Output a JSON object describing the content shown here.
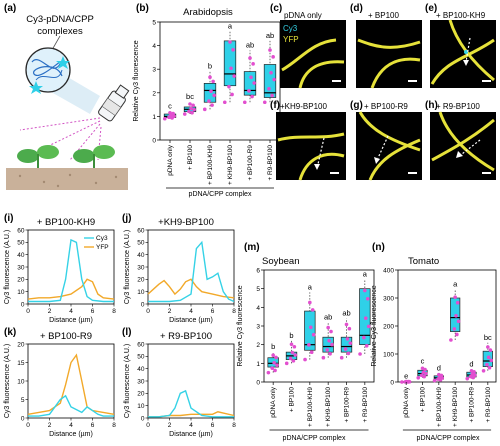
{
  "panel_labels": [
    "(a)",
    "(b)",
    "(c)",
    "(d)",
    "(e)",
    "(f)",
    "(g)",
    "(h)",
    "(i)",
    "(j)",
    "(k)",
    "(l)",
    "(m)",
    "(n)"
  ],
  "schematic": {
    "title_line1": "Cy3-pDNA/CPP",
    "title_line2": "complexes"
  },
  "micrographs": {
    "legend_cy3": "Cy3",
    "legend_yfp": "YFP",
    "titles": [
      "pDNA only",
      "+ BP100",
      "+ BP100-KH9",
      "+KH9-BP100",
      "+ BP100-R9",
      "+ R9-BP100"
    ]
  },
  "colors": {
    "box": "#2FD0E8",
    "point": "#E24FCF",
    "cy3": "#35D2E6",
    "yfp": "#F2A92A",
    "micro_bg": "#000000",
    "micro_yellow": "#E6E23A"
  },
  "bottom_label": "pDNA/CPP complex",
  "chart_data": [
    {
      "type": "box",
      "id": "b",
      "title": "Arabidopsis",
      "ylabel": "Relative Cy3 fluorescence",
      "ylim": [
        0,
        5
      ],
      "yticks": [
        0,
        1,
        2,
        3,
        4,
        5
      ],
      "categories": [
        "pDNA only",
        "+ BP100",
        "+ BP100-KH9",
        "+ KH9-BP100",
        "+ BP100-R9",
        "+ R9-BP100"
      ],
      "boxes": [
        [
          0.9,
          0.95,
          1.0,
          1.1,
          1.2
        ],
        [
          1.1,
          1.2,
          1.3,
          1.4,
          1.6
        ],
        [
          1.3,
          1.6,
          2.1,
          2.4,
          2.9
        ],
        [
          1.6,
          2.3,
          2.8,
          4.2,
          4.6
        ],
        [
          1.6,
          1.9,
          2.1,
          2.9,
          3.8
        ],
        [
          1.6,
          1.8,
          2.0,
          3.2,
          4.2
        ]
      ],
      "letters": [
        "c",
        "bc",
        "b",
        "a",
        "ab",
        "ab"
      ]
    },
    {
      "type": "box",
      "id": "m",
      "title": "Soybean",
      "ylabel": "Relative Cy3 fluorescence",
      "ylim": [
        0,
        6
      ],
      "yticks": [
        0,
        1,
        2,
        3,
        4,
        5,
        6
      ],
      "categories": [
        "pDNA only",
        "+ BP100",
        "+ BP100-KH9",
        "+ KH9-BP100",
        "+ BP100-R9",
        "+ R9-BP100"
      ],
      "boxes": [
        [
          0.5,
          0.8,
          1.0,
          1.3,
          1.6
        ],
        [
          1.0,
          1.2,
          1.4,
          1.6,
          2.2
        ],
        [
          1.2,
          1.7,
          2.0,
          3.8,
          4.8
        ],
        [
          1.3,
          1.6,
          1.9,
          2.4,
          3.2
        ],
        [
          1.3,
          1.6,
          1.9,
          2.4,
          3.4
        ],
        [
          1.5,
          2.0,
          2.5,
          5.0,
          5.5
        ]
      ],
      "letters": [
        "b",
        "b",
        "a",
        "ab",
        "ab",
        "a"
      ]
    },
    {
      "type": "box",
      "id": "n",
      "title": "Tomato",
      "ylabel": "Relative Cy3 fluorescence",
      "ylim": [
        0,
        400
      ],
      "yticks": [
        0,
        100,
        200,
        300,
        400
      ],
      "categories": [
        "pDNA only",
        "+ BP100",
        "+ BP100-KH9",
        "+ KH9-BP100",
        "+ BP100-R9",
        "+ R9-BP100"
      ],
      "boxes": [
        [
          0,
          0.5,
          1,
          1.5,
          2
        ],
        [
          15,
          22,
          30,
          42,
          55
        ],
        [
          5,
          10,
          15,
          22,
          30
        ],
        [
          150,
          180,
          230,
          300,
          330
        ],
        [
          12,
          18,
          25,
          35,
          45
        ],
        [
          40,
          55,
          75,
          110,
          140
        ]
      ],
      "letters": [
        "e",
        "c",
        "d",
        "a",
        "d",
        "bc"
      ]
    },
    {
      "type": "line",
      "id": "i",
      "title": "+ BP100-KH9",
      "xlabel": "Distance (µm)",
      "ylabel": "Cy3 fluorescence (A.U.)",
      "xlim": [
        0,
        8
      ],
      "ylim": [
        0,
        60
      ],
      "xticks": [
        0,
        2,
        4,
        6,
        8
      ],
      "yticks": [
        0,
        10,
        20,
        30,
        40,
        50,
        60
      ],
      "legend": [
        "Cy3",
        "YFP"
      ],
      "series": [
        {
          "name": "Cy3",
          "x": [
            0,
            1,
            2,
            3,
            3.5,
            4,
            4.5,
            5,
            5.5,
            6,
            7,
            8
          ],
          "y": [
            2,
            2,
            2,
            3,
            20,
            52,
            50,
            20,
            6,
            3,
            2,
            2
          ]
        },
        {
          "name": "YFP",
          "x": [
            0,
            1,
            2,
            3,
            4,
            5,
            5.5,
            6,
            6.5,
            7,
            8
          ],
          "y": [
            4,
            5,
            5,
            6,
            8,
            14,
            20,
            18,
            8,
            5,
            4
          ]
        }
      ]
    },
    {
      "type": "line",
      "id": "j",
      "title": "+KH9-BP100",
      "xlabel": "Distance (µm)",
      "ylabel": "Cy3 fluorescence (A.U.)",
      "xlim": [
        0,
        8
      ],
      "ylim": [
        0,
        60
      ],
      "xticks": [
        0,
        2,
        4,
        6,
        8
      ],
      "yticks": [
        0,
        10,
        20,
        30,
        40,
        50,
        60
      ],
      "series": [
        {
          "name": "Cy3",
          "x": [
            0,
            1,
            2,
            3,
            4,
            4.5,
            5,
            5.5,
            6,
            6.5,
            7,
            7.5,
            8
          ],
          "y": [
            2,
            2,
            2,
            3,
            8,
            45,
            50,
            20,
            22,
            25,
            10,
            4,
            2
          ]
        },
        {
          "name": "YFP",
          "x": [
            0,
            0.5,
            1,
            1.5,
            2,
            2.5,
            3,
            3.5,
            4,
            4.5,
            5,
            6,
            7,
            8
          ],
          "y": [
            8,
            12,
            16,
            19,
            14,
            8,
            12,
            18,
            20,
            14,
            10,
            8,
            6,
            5
          ]
        }
      ]
    },
    {
      "type": "line",
      "id": "k",
      "title": "+ BP100-R9",
      "xlabel": "Distance (µm)",
      "ylabel": "Cy3 fluorescence (A.U.)",
      "xlim": [
        0,
        8
      ],
      "ylim": [
        0,
        20
      ],
      "xticks": [
        0,
        2,
        4,
        6,
        8
      ],
      "yticks": [
        0,
        5,
        10,
        15,
        20
      ],
      "series": [
        {
          "name": "Cy3",
          "x": [
            0,
            1,
            2,
            2.5,
            3,
            3.5,
            4,
            5,
            5.5,
            6,
            6.5,
            7,
            8
          ],
          "y": [
            0.5,
            0.5,
            1,
            3,
            5,
            6,
            3,
            1.5,
            3,
            2,
            1,
            0.5,
            0.5
          ]
        },
        {
          "name": "YFP",
          "x": [
            0,
            1,
            2,
            3,
            3.5,
            4,
            4.5,
            5,
            5.5,
            6,
            7,
            8
          ],
          "y": [
            1,
            1.5,
            2,
            4,
            9,
            15,
            17,
            10,
            3,
            2,
            1.5,
            1
          ]
        }
      ]
    },
    {
      "type": "line",
      "id": "l",
      "title": "+ R9-BP100",
      "xlabel": "Distance (µm)",
      "ylabel": "Cy3 fluorescence (A.U.)",
      "xlim": [
        0,
        8
      ],
      "ylim": [
        0,
        60
      ],
      "xticks": [
        0,
        2,
        4,
        6,
        8
      ],
      "yticks": [
        0,
        10,
        20,
        30,
        40,
        50,
        60
      ],
      "series": [
        {
          "name": "Cy3",
          "x": [
            0,
            1,
            2,
            2.5,
            3,
            3.5,
            4,
            5,
            6,
            7,
            8
          ],
          "y": [
            1,
            1,
            2,
            8,
            20,
            22,
            8,
            2,
            1,
            1,
            1
          ]
        },
        {
          "name": "YFP",
          "x": [
            0,
            1,
            2,
            3,
            4,
            5,
            6,
            6.5,
            7,
            8
          ],
          "y": [
            1,
            1,
            2,
            2,
            3,
            3,
            3,
            5,
            4,
            2
          ]
        }
      ]
    }
  ]
}
